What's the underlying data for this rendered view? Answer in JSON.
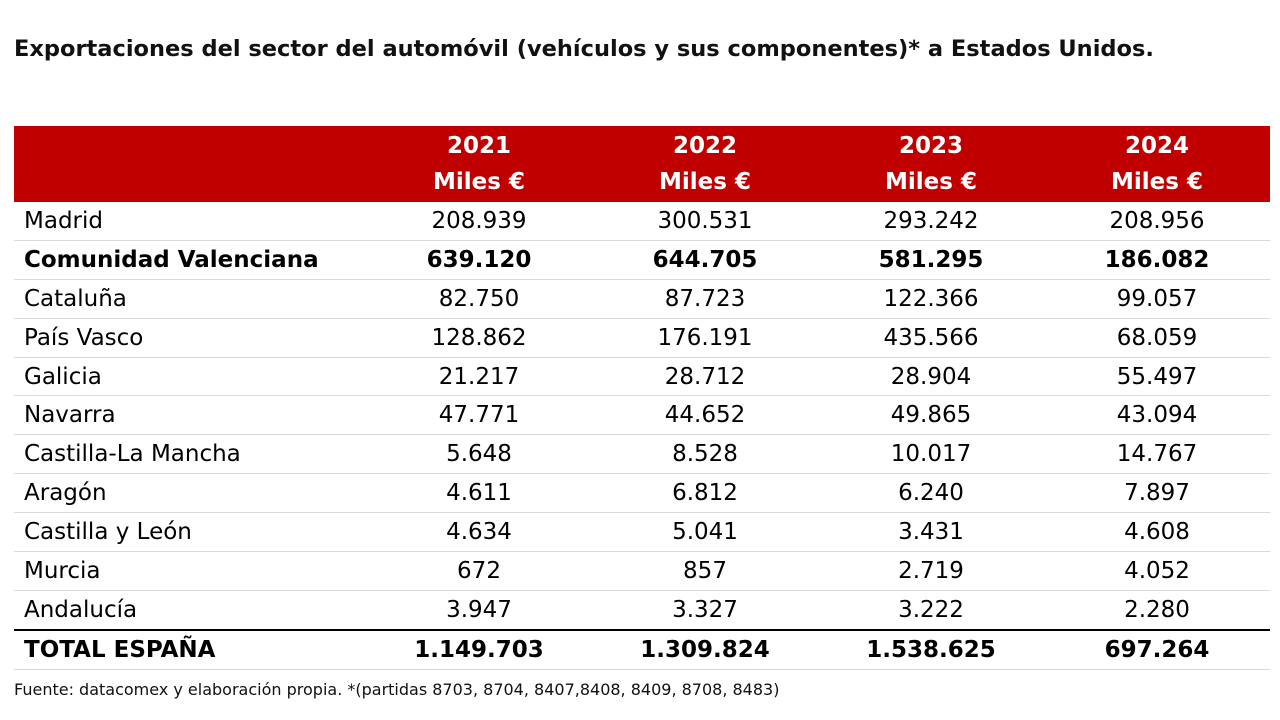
{
  "title": "Exportaciones del sector del automóvil (vehículos y sus componentes)* a Estados Unidos.",
  "colors": {
    "header_bg": "#c00000",
    "header_text": "#ffffff"
  },
  "table": {
    "columns": [
      {
        "year": "2021",
        "unit": "Miles €"
      },
      {
        "year": "2022",
        "unit": "Miles €"
      },
      {
        "year": "2023",
        "unit": "Miles €"
      },
      {
        "year": "2024",
        "unit": "Miles €"
      }
    ],
    "rows": [
      {
        "region": "Madrid",
        "values": [
          "208.939",
          "300.531",
          "293.242",
          "208.956"
        ],
        "bold": false
      },
      {
        "region": "Comunidad Valenciana",
        "values": [
          "639.120",
          "644.705",
          "581.295",
          "186.082"
        ],
        "bold": true
      },
      {
        "region": "Cataluña",
        "values": [
          "82.750",
          "87.723",
          "122.366",
          "99.057"
        ],
        "bold": false
      },
      {
        "region": "País Vasco",
        "values": [
          "128.862",
          "176.191",
          "435.566",
          "68.059"
        ],
        "bold": false
      },
      {
        "region": "Galicia",
        "values": [
          "21.217",
          "28.712",
          "28.904",
          "55.497"
        ],
        "bold": false
      },
      {
        "region": "Navarra",
        "values": [
          "47.771",
          "44.652",
          "49.865",
          "43.094"
        ],
        "bold": false
      },
      {
        "region": "Castilla-La Mancha",
        "values": [
          "5.648",
          "8.528",
          "10.017",
          "14.767"
        ],
        "bold": false
      },
      {
        "region": "Aragón",
        "values": [
          "4.611",
          "6.812",
          "6.240",
          "7.897"
        ],
        "bold": false
      },
      {
        "region": "Castilla y León",
        "values": [
          "4.634",
          "5.041",
          "3.431",
          "4.608"
        ],
        "bold": false
      },
      {
        "region": "Murcia",
        "values": [
          "672",
          "857",
          "2.719",
          "4.052"
        ],
        "bold": false
      },
      {
        "region": "Andalucía",
        "values": [
          "3.947",
          "3.327",
          "3.222",
          "2.280"
        ],
        "bold": false
      }
    ],
    "total": {
      "region": "TOTAL ESPAÑA",
      "values": [
        "1.149.703",
        "1.309.824",
        "1.538.625",
        "697.264"
      ]
    }
  },
  "source": "Fuente: datacomex y elaboración propia. *(partidas 8703, 8704, 8407,8408,  8409, 8708, 8483)"
}
